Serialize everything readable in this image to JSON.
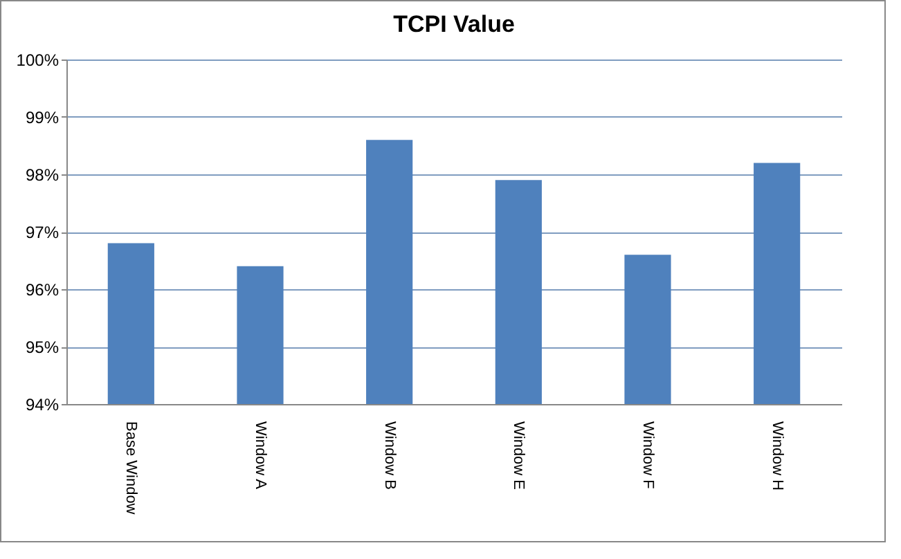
{
  "chart_data": {
    "type": "bar",
    "title": "TCPI Value",
    "categories": [
      "Base Window",
      "Window A",
      "Window B",
      "Window E",
      "Window F",
      "Window H"
    ],
    "values": [
      96.8,
      96.4,
      98.6,
      97.9,
      96.6,
      98.2
    ],
    "color": "#4f81bd",
    "ylim": [
      94,
      100
    ],
    "yticks": [
      {
        "value": 94,
        "label": "94%"
      },
      {
        "value": 95,
        "label": "95%"
      },
      {
        "value": 96,
        "label": "96%"
      },
      {
        "value": 97,
        "label": "97%"
      },
      {
        "value": 98,
        "label": "98%"
      },
      {
        "value": 99,
        "label": "99%"
      },
      {
        "value": 100,
        "label": "100%"
      }
    ],
    "grid": "y"
  }
}
